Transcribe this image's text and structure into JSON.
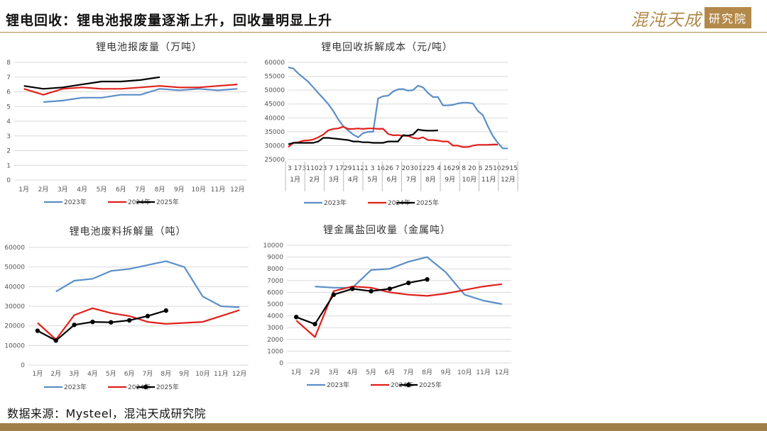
{
  "header": {
    "title": "锂电回收：锂电池报废量逐渐上升，回收量明显上升"
  },
  "logo": {
    "script_text": "混沌天成",
    "box_text": "研究院",
    "color": "#b3894a"
  },
  "footer": {
    "source": "数据来源：Mysteel，混沌天成研究院"
  },
  "colors": {
    "s2023": "#5b8fc7",
    "s2024": "#e0201b",
    "s2025": "#000000",
    "grid": "#d9d9d9",
    "accent": "#a07e47"
  },
  "chart_data": [
    {
      "id": "c1",
      "type": "line",
      "title": "锂电池报废量（万吨）",
      "categories": [
        "1月",
        "2月",
        "3月",
        "4月",
        "5月",
        "6月",
        "7月",
        "8月",
        "9月",
        "10月",
        "11月",
        "12月"
      ],
      "ylim": [
        0,
        8
      ],
      "yticks": [
        "0",
        "1",
        "2",
        "3",
        "4",
        "5",
        "6",
        "7",
        "8"
      ],
      "series": [
        {
          "name": "2023年",
          "values": [
            null,
            5.3,
            5.4,
            5.6,
            5.6,
            5.8,
            5.8,
            6.2,
            6.1,
            6.2,
            6.1,
            6.2
          ]
        },
        {
          "name": "2024年",
          "values": [
            6.2,
            5.8,
            6.2,
            6.3,
            6.2,
            6.2,
            6.3,
            6.4,
            6.3,
            6.3,
            6.4,
            6.5
          ]
        },
        {
          "name": "2025年",
          "values": [
            6.4,
            6.2,
            6.3,
            6.5,
            6.7,
            6.7,
            6.8,
            7.0,
            null,
            null,
            null,
            null
          ]
        }
      ],
      "grid": true,
      "legend": "bottom"
    },
    {
      "id": "c2",
      "type": "line",
      "title": "锂电回收拆解成本（元/吨）",
      "x_day_labels": [
        "3",
        "17",
        "31",
        "10",
        "23",
        "7",
        "17",
        "29",
        "11",
        "21",
        "3",
        "16",
        "26",
        "7",
        "20",
        "30",
        "12",
        "25",
        "4",
        "16",
        "29",
        "8",
        "20",
        "6",
        "25",
        "10",
        "29",
        "15"
      ],
      "x_month_labels": [
        "1月",
        "2月",
        "3月",
        "4月",
        "5月",
        "6月",
        "7月",
        "8月",
        "9月",
        "10月",
        "11月",
        "12月"
      ],
      "ylim": [
        25000,
        60000
      ],
      "yticks": [
        "25000",
        "30000",
        "35000",
        "40000",
        "45000",
        "50000",
        "55000",
        "60000"
      ],
      "series": [
        {
          "name": "2023年",
          "values": [
            58200,
            57800,
            56000,
            54500,
            53000,
            51000,
            49000,
            47000,
            45000,
            42500,
            39500,
            37000,
            35500,
            34000,
            33000,
            34500,
            35000,
            35000,
            47000,
            47800,
            48000,
            49500,
            50300,
            50400,
            49800,
            50000,
            51600,
            51000,
            49000,
            47500,
            47500,
            44500,
            44500,
            44700,
            45200,
            45500,
            45500,
            45200,
            42500,
            41000,
            37000,
            33500,
            31000,
            29000,
            29000
          ]
        },
        {
          "name": "2024年",
          "values": [
            29500,
            31000,
            31200,
            31800,
            31900,
            32200,
            33000,
            34000,
            35500,
            36000,
            36200,
            36800,
            36000,
            36000,
            36200,
            36000,
            36200,
            36200,
            36000,
            36100,
            34200,
            33700,
            33800,
            33500,
            33500,
            32800,
            32500,
            33000,
            32000,
            32000,
            31800,
            31500,
            31500,
            30000,
            30000,
            29500,
            29500,
            30000,
            30300,
            30300,
            30300,
            30400,
            30400
          ]
        },
        {
          "name": "2025年",
          "values": [
            30500,
            31000,
            31000,
            31000,
            31000,
            31000,
            31500,
            32800,
            32800,
            32600,
            32400,
            32200,
            32000,
            31500,
            31500,
            31200,
            31200,
            31000,
            31000,
            31000,
            31500,
            31500,
            31500,
            33800,
            33600,
            34000,
            35800,
            35500,
            35400,
            35400,
            35500
          ]
        }
      ],
      "grid": true,
      "legend": "bottom"
    },
    {
      "id": "c3",
      "type": "line",
      "title": "锂电池废料拆解量（吨）",
      "categories": [
        "1月",
        "2月",
        "3月",
        "4月",
        "5月",
        "6月",
        "7月",
        "8月",
        "9月",
        "10月",
        "11月",
        "12月"
      ],
      "ylim": [
        0,
        60000
      ],
      "yticks": [
        "0",
        "10000",
        "20000",
        "30000",
        "40000",
        "50000",
        "60000"
      ],
      "series": [
        {
          "name": "2023年",
          "values": [
            null,
            37500,
            43000,
            44000,
            48000,
            49000,
            51000,
            53000,
            50000,
            35000,
            30000,
            29500
          ]
        },
        {
          "name": "2024年",
          "values": [
            21500,
            13000,
            25500,
            29000,
            26500,
            25000,
            22000,
            21000,
            21500,
            22000,
            25000,
            28000
          ]
        },
        {
          "name": "2025年",
          "values": [
            17500,
            12500,
            20500,
            22000,
            21800,
            22800,
            25000,
            27800,
            null,
            null,
            null,
            null
          ],
          "markers": true
        }
      ],
      "grid": true,
      "legend": "bottom"
    },
    {
      "id": "c4",
      "type": "line",
      "title": "锂金属盐回收量（金属吨）",
      "categories": [
        "1月",
        "2月",
        "3月",
        "4月",
        "5月",
        "6月",
        "7月",
        "8月",
        "9月",
        "10月",
        "11月",
        "12月"
      ],
      "ylim": [
        0,
        10000
      ],
      "yticks": [
        "0",
        "1000",
        "2000",
        "3000",
        "4000",
        "5000",
        "6000",
        "7000",
        "8000",
        "9000",
        "10000"
      ],
      "series": [
        {
          "name": "2023年",
          "values": [
            null,
            6500,
            6400,
            6400,
            7900,
            8000,
            8600,
            9000,
            7700,
            5800,
            5300,
            5000
          ]
        },
        {
          "name": "2024年",
          "values": [
            3600,
            2200,
            6100,
            6500,
            6400,
            6000,
            5800,
            5700,
            5900,
            6200,
            6500,
            6700
          ]
        },
        {
          "name": "2025年",
          "values": [
            3900,
            3300,
            5800,
            6300,
            6100,
            6300,
            6800,
            7100,
            null,
            null,
            null,
            null
          ],
          "markers": true
        }
      ],
      "grid": true,
      "legend": "bottom"
    }
  ]
}
